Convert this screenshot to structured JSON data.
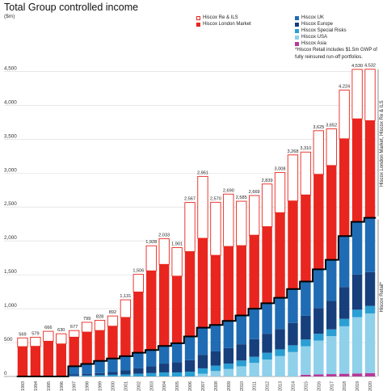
{
  "colors": {
    "re_ils": "#ffffff",
    "london_market": "#e8261f",
    "uk": "#1f6cb4",
    "europe": "#163f7c",
    "special_risks": "#2a9fd4",
    "usa": "#8fd0ea",
    "asia": "#b53a9a",
    "ls_division_line": "#000000",
    "bar_outline": "#e8261f"
  },
  "chart_data": {
    "type": "bar",
    "stacked": true,
    "title": "Total Group controlled income",
    "ylabel": "($m)",
    "ylim": [
      0,
      4600
    ],
    "yticks": [
      0,
      500,
      1000,
      1500,
      2000,
      2500,
      3000,
      3500,
      4000,
      4500
    ],
    "ytick_labels": [
      "0",
      "500",
      "1,000",
      "1,500",
      "2,000",
      "2,500",
      "3,000",
      "3,500",
      "4,000",
      "4,500"
    ],
    "grid": true,
    "legend": "top",
    "categories": [
      "1993",
      "1994",
      "1995",
      "1996",
      "1997",
      "1998",
      "1999",
      "2000",
      "2001",
      "2002",
      "2003",
      "2004",
      "2005",
      "2006",
      "2007",
      "2008",
      "2009",
      "2010",
      "2011",
      "2012",
      "2013",
      "2014",
      "2015",
      "2016",
      "2017",
      "2018",
      "2019",
      "2020"
    ],
    "totals": [
      569,
      579,
      666,
      630,
      677,
      799,
      828,
      892,
      1131,
      1506,
      1928,
      2033,
      1901,
      2567,
      2951,
      2570,
      2690,
      2585,
      2669,
      2839,
      3008,
      3268,
      3310,
      3625,
      3652,
      4224,
      4530,
      4532
    ],
    "total_labels": [
      "569",
      "579",
      "666",
      "630",
      "677",
      "799",
      "828",
      "892",
      "1,131",
      "1,506",
      "1,928",
      "2,033",
      "1,901",
      "2,567",
      "2,951",
      "2,570",
      "2,690",
      "2,585",
      "2,669",
      "2,839",
      "3,008",
      "3,268",
      "3,310",
      "3,625",
      "3,652",
      "4,224",
      "4,530",
      "4,532"
    ],
    "series": [
      {
        "name": "Hiscox Asia",
        "key": "asia",
        "values": [
          0,
          0,
          0,
          0,
          0,
          0,
          0,
          0,
          0,
          0,
          0,
          0,
          0,
          0,
          0,
          0,
          0,
          0,
          0,
          0,
          0,
          0,
          25,
          30,
          35,
          40,
          45,
          50
        ]
      },
      {
        "name": "Hiscox USA",
        "key": "usa",
        "values": [
          0,
          0,
          0,
          0,
          0,
          0,
          0,
          0,
          0,
          0,
          0,
          0,
          0,
          0,
          40,
          80,
          110,
          150,
          200,
          250,
          300,
          360,
          420,
          500,
          560,
          700,
          830,
          880
        ]
      },
      {
        "name": "Hiscox Special Risks",
        "key": "special_risks",
        "values": [
          0,
          0,
          0,
          0,
          10,
          15,
          20,
          25,
          30,
          40,
          50,
          60,
          60,
          70,
          80,
          80,
          80,
          85,
          90,
          100,
          100,
          100,
          100,
          100,
          100,
          110,
          110,
          110
        ]
      },
      {
        "name": "Hiscox Europe",
        "key": "europe",
        "values": [
          0,
          0,
          0,
          0,
          20,
          25,
          30,
          40,
          60,
          80,
          100,
          130,
          150,
          170,
          200,
          210,
          230,
          240,
          260,
          280,
          300,
          330,
          350,
          380,
          420,
          470,
          520,
          500
        ]
      },
      {
        "name": "Hiscox UK",
        "key": "uk",
        "values": [
          0,
          0,
          0,
          0,
          120,
          145,
          180,
          200,
          210,
          230,
          240,
          260,
          280,
          350,
          400,
          390,
          400,
          425,
          450,
          450,
          460,
          500,
          505,
          570,
          605,
          750,
          775,
          800
        ]
      },
      {
        "name": "Hiscox London Market",
        "key": "london_market",
        "values": [
          440,
          445,
          520,
          480,
          430,
          470,
          448,
          477,
          571,
          896,
          1168,
          1203,
          990,
          1252,
          1318,
          1027,
          1098,
          1030,
          1084,
          1130,
          1256,
          1299,
          1278,
          1402,
          1392,
          1436,
          1520,
          1434
        ]
      },
      {
        "name": "Hiscox Re & ILS",
        "key": "re_ils",
        "values": [
          129,
          134,
          146,
          150,
          97,
          144,
          150,
          150,
          260,
          260,
          370,
          380,
          421,
          725,
          913,
          783,
          772,
          655,
          585,
          629,
          592,
          679,
          632,
          643,
          540,
          718,
          730,
          758
        ]
      }
    ],
    "right_labels": [
      "Hiscox London Market, Hiscox Re & ILS",
      "Hiscox Retail*"
    ]
  },
  "legend": {
    "left": [
      {
        "label": "Hiscox Re & ILS",
        "key": "re_ils"
      },
      {
        "label": "Hiscox London Market",
        "key": "london_market"
      }
    ],
    "right": [
      {
        "label": "Hiscox UK",
        "key": "uk"
      },
      {
        "label": "Hiscox Europe",
        "key": "europe"
      },
      {
        "label": "Hiscox Special Risks",
        "key": "special_risks"
      },
      {
        "label": "Hiscox USA",
        "key": "usa"
      },
      {
        "label": "Hiscox Asia",
        "key": "asia"
      }
    ],
    "note": "*Hiscox Retail includes $1.5m GWP of fully reinsured run-off portfolios."
  }
}
